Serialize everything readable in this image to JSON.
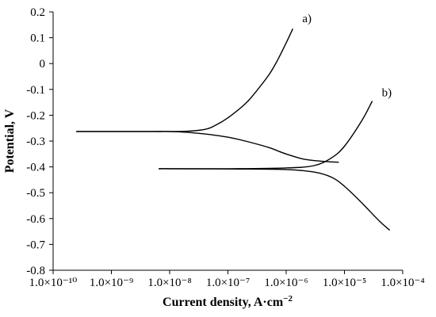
{
  "chart_data": {
    "type": "line",
    "xlabel": "Current density, A·cm",
    "xlabel_sup": "−2",
    "ylabel": "Potential, V",
    "x_scale": "log",
    "xlim": [
      1e-10,
      0.0001
    ],
    "ylim": [
      -0.8,
      0.2
    ],
    "grid": false,
    "legend": "none",
    "x_tick_labels": [
      "1.0×10⁻¹⁰",
      "1.0×10⁻⁹",
      "1.0×10⁻⁸",
      "1.0×10⁻⁷",
      "1.0×10⁻⁶",
      "1.0×10⁻⁵",
      "1.0×10⁻⁴"
    ],
    "y_ticks": [
      -0.8,
      -0.7,
      -0.6,
      -0.5,
      -0.4,
      -0.3,
      -0.2,
      -0.1,
      0,
      0.1,
      0.2
    ],
    "y_tick_labels": [
      "-0.8",
      "-0.7",
      "-0.6",
      "-0.5",
      "-0.4",
      "-0.3",
      "-0.2",
      "-0.1",
      "0",
      "0.1",
      "0.2"
    ],
    "line_color": "#000000",
    "series": [
      {
        "name": "a)",
        "branches": [
          {
            "x": [
              2.5e-10,
              1e-09,
              5e-09,
              1e-08,
              2e-08,
              4e-08,
              6e-08,
              1e-07,
              2e-07,
              3e-07,
              5e-07,
              7e-07,
              1e-06,
              1.3e-06
            ],
            "y": [
              -0.263,
              -0.263,
              -0.263,
              -0.263,
              -0.262,
              -0.255,
              -0.24,
              -0.21,
              -0.155,
              -0.11,
              -0.045,
              0.01,
              0.08,
              0.135
            ]
          },
          {
            "x": [
              2.5e-10,
              1e-09,
              5e-09,
              1e-08,
              2e-08,
              5e-08,
              1e-07,
              2e-07,
              5e-07,
              1e-06,
              2e-06,
              4e-06,
              8e-06
            ],
            "y": [
              -0.263,
              -0.263,
              -0.263,
              -0.263,
              -0.266,
              -0.275,
              -0.285,
              -0.3,
              -0.325,
              -0.35,
              -0.37,
              -0.378,
              -0.382
            ]
          }
        ]
      },
      {
        "name": "b)",
        "branches": [
          {
            "x": [
              6.5e-09,
              1e-08,
              1e-07,
              1e-06,
              3e-06,
              6e-06,
              1e-05,
              2e-05,
              3e-05
            ],
            "y": [
              -0.407,
              -0.407,
              -0.407,
              -0.404,
              -0.395,
              -0.365,
              -0.32,
              -0.22,
              -0.145
            ]
          },
          {
            "x": [
              6.5e-09,
              1e-08,
              1e-07,
              1e-06,
              3e-06,
              6e-06,
              1e-05,
              2e-05,
              4e-05,
              6e-05
            ],
            "y": [
              -0.407,
              -0.407,
              -0.408,
              -0.41,
              -0.42,
              -0.44,
              -0.475,
              -0.54,
              -0.61,
              -0.645
            ]
          }
        ]
      }
    ]
  }
}
